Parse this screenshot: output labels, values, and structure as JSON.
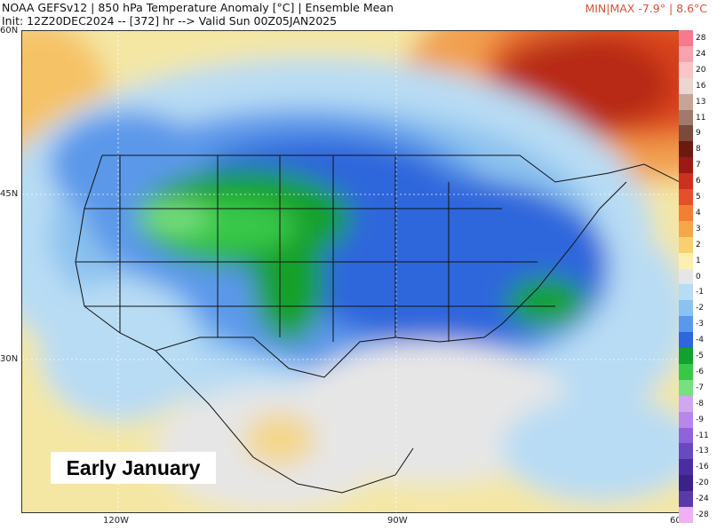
{
  "header": {
    "line1": "NOAA GEFSv12 | 850 hPa Temperature Anomaly [°C] | Ensemble Mean",
    "line2": "Init: 12Z20DEC2024 -- [372] hr --> Valid Sun 00Z05JAN2025",
    "minmax": "MIN|MAX -7.9° | 8.6°C"
  },
  "axes": {
    "lat_labels": [
      "60N",
      "45N",
      "30N"
    ],
    "lon_labels": [
      "120W",
      "90W",
      "60"
    ]
  },
  "overlay_label": "Early January",
  "colorbar": {
    "labels": [
      "28",
      "24",
      "20",
      "16",
      "13",
      "11",
      "9",
      "8",
      "7",
      "6",
      "5",
      "4",
      "3",
      "2",
      "1",
      "0",
      "-1",
      "-2",
      "-3",
      "-4",
      "-5",
      "-6",
      "-7",
      "-8",
      "-9",
      "-11",
      "-13",
      "-16",
      "-20",
      "-24",
      "-28"
    ],
    "colors": [
      "#f47a8c",
      "#f6a4ae",
      "#f8c6c8",
      "#ecd6d0",
      "#c8a498",
      "#a07a6c",
      "#7a4a3c",
      "#6b1a10",
      "#9b1a14",
      "#c8321e",
      "#e4502a",
      "#f08038",
      "#f4a84a",
      "#f8d070",
      "#fcf0b0",
      "#e6e6e6",
      "#b8dcf4",
      "#8cc2ef",
      "#5c98ea",
      "#2f66dc",
      "#14a02c",
      "#38c848",
      "#78e080",
      "#d0a8f0",
      "#b888e8",
      "#9064d8",
      "#6a48c0",
      "#4a2ea0",
      "#3a2288",
      "#5a3aa8",
      "#f0b0f4"
    ]
  }
}
